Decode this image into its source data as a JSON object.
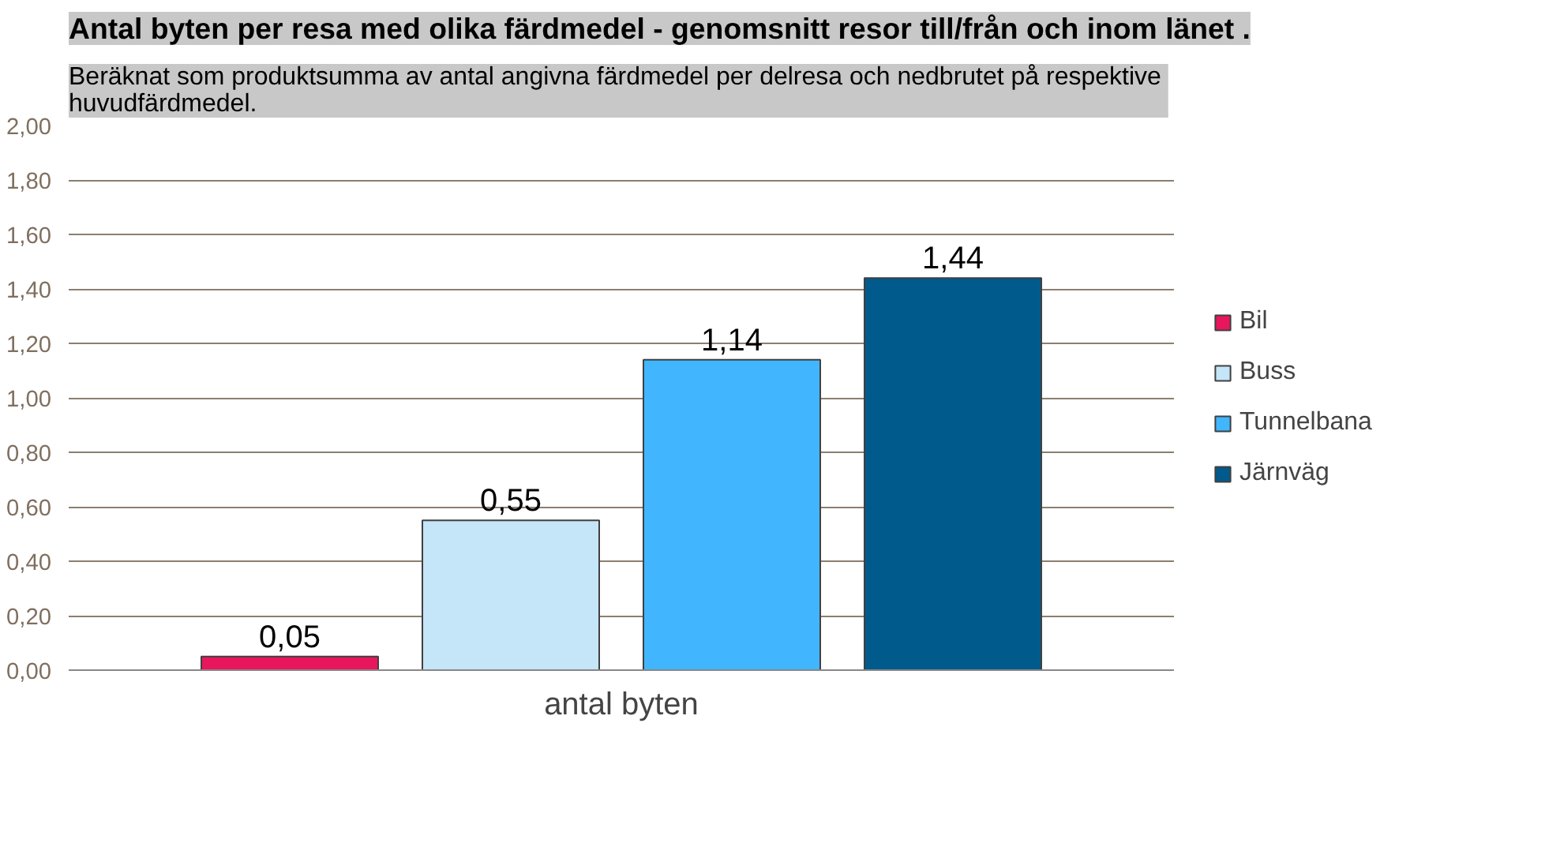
{
  "chart_data": {
    "type": "bar",
    "title": "Antal byten per resa med olika färdmedel - genomsnitt resor till/från och inom länet .",
    "subtitle": "Beräknat som produktsumma  av antal angivna färdmedel per delresa och nedbrutet på respektive huvudfärdmedel.",
    "categories": [
      "antal byten"
    ],
    "series": [
      {
        "name": "Bil",
        "color": "#e8175d",
        "values": [
          0.05
        ],
        "value_labels": [
          "0,05"
        ]
      },
      {
        "name": "Buss",
        "color": "#c5e5f8",
        "values": [
          0.55
        ],
        "value_labels": [
          "0,55"
        ]
      },
      {
        "name": "Tunnelbana",
        "color": "#41b6ff",
        "values": [
          1.14
        ],
        "value_labels": [
          "1,14"
        ]
      },
      {
        "name": "Järnväg",
        "color": "#005a8c",
        "values": [
          1.44
        ],
        "value_labels": [
          "1,44"
        ]
      }
    ],
    "ylim": [
      0,
      2
    ],
    "yticks": [
      {
        "value": 0,
        "label": "0,00"
      },
      {
        "value": 0.2,
        "label": "0,20"
      },
      {
        "value": 0.4,
        "label": "0,40"
      },
      {
        "value": 0.6,
        "label": "0,60"
      },
      {
        "value": 0.8,
        "label": "0,80"
      },
      {
        "value": 1.0,
        "label": "1,00"
      },
      {
        "value": 1.2,
        "label": "1,20"
      },
      {
        "value": 1.4,
        "label": "1,40"
      },
      {
        "value": 1.6,
        "label": "1,60"
      },
      {
        "value": 1.8,
        "label": "1,80"
      },
      {
        "value": 2.0,
        "label": "2,00"
      }
    ],
    "grid": "y",
    "legend": "right"
  }
}
